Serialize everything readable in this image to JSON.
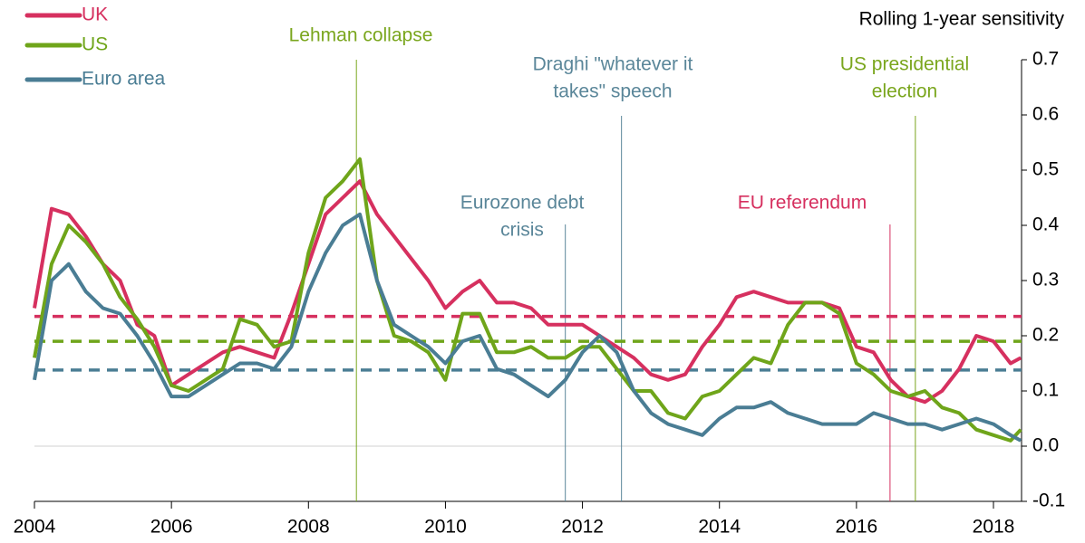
{
  "chart_data": {
    "type": "line",
    "y_axis_label": "Rolling 1-year sensitivity",
    "x": [
      2004,
      2004.25,
      2004.5,
      2004.75,
      2005,
      2005.25,
      2005.5,
      2005.75,
      2006,
      2006.25,
      2006.5,
      2006.75,
      2007,
      2007.25,
      2007.5,
      2007.75,
      2008,
      2008.25,
      2008.5,
      2008.75,
      2009,
      2009.25,
      2009.5,
      2009.75,
      2010,
      2010.25,
      2010.5,
      2010.75,
      2011,
      2011.25,
      2011.5,
      2011.75,
      2012,
      2012.25,
      2012.5,
      2012.75,
      2013,
      2013.25,
      2013.5,
      2013.75,
      2014,
      2014.25,
      2014.5,
      2014.75,
      2015,
      2015.25,
      2015.5,
      2015.75,
      2016,
      2016.25,
      2016.5,
      2016.75,
      2017,
      2017.25,
      2017.5,
      2017.75,
      2018,
      2018.25,
      2018.4
    ],
    "series": [
      {
        "name": "UK",
        "color": "#d6305f",
        "mean": 0.235,
        "values": [
          0.25,
          0.43,
          0.42,
          0.38,
          0.33,
          0.3,
          0.22,
          0.2,
          0.11,
          0.13,
          0.15,
          0.17,
          0.18,
          0.17,
          0.16,
          0.24,
          0.33,
          0.42,
          0.45,
          0.48,
          0.42,
          0.38,
          0.34,
          0.3,
          0.25,
          0.28,
          0.3,
          0.26,
          0.26,
          0.25,
          0.22,
          0.22,
          0.22,
          0.2,
          0.18,
          0.16,
          0.13,
          0.12,
          0.13,
          0.18,
          0.22,
          0.27,
          0.28,
          0.27,
          0.26,
          0.26,
          0.26,
          0.25,
          0.18,
          0.17,
          0.12,
          0.09,
          0.08,
          0.1,
          0.14,
          0.2,
          0.19,
          0.15,
          0.16
        ]
      },
      {
        "name": "US",
        "color": "#6fa51a",
        "mean": 0.19,
        "values": [
          0.16,
          0.33,
          0.4,
          0.37,
          0.33,
          0.27,
          0.23,
          0.18,
          0.11,
          0.1,
          0.12,
          0.14,
          0.23,
          0.22,
          0.18,
          0.19,
          0.35,
          0.45,
          0.48,
          0.52,
          0.3,
          0.2,
          0.19,
          0.17,
          0.12,
          0.24,
          0.24,
          0.17,
          0.17,
          0.18,
          0.16,
          0.16,
          0.18,
          0.18,
          0.14,
          0.1,
          0.1,
          0.06,
          0.05,
          0.09,
          0.1,
          0.13,
          0.16,
          0.15,
          0.22,
          0.26,
          0.26,
          0.24,
          0.15,
          0.13,
          0.1,
          0.09,
          0.1,
          0.07,
          0.06,
          0.03,
          0.02,
          0.01,
          0.03
        ]
      },
      {
        "name": "Euro area",
        "color": "#4a7d94",
        "mean": 0.138,
        "values": [
          0.12,
          0.3,
          0.33,
          0.28,
          0.25,
          0.24,
          0.2,
          0.15,
          0.09,
          0.09,
          0.11,
          0.13,
          0.15,
          0.15,
          0.14,
          0.18,
          0.28,
          0.35,
          0.4,
          0.42,
          0.3,
          0.22,
          0.2,
          0.18,
          0.15,
          0.19,
          0.2,
          0.14,
          0.13,
          0.11,
          0.09,
          0.12,
          0.17,
          0.2,
          0.17,
          0.1,
          0.06,
          0.04,
          0.03,
          0.02,
          0.05,
          0.07,
          0.07,
          0.08,
          0.06,
          0.05,
          0.04,
          0.04,
          0.04,
          0.06,
          0.05,
          0.04,
          0.04,
          0.03,
          0.04,
          0.05,
          0.04,
          0.02,
          0.01
        ]
      }
    ],
    "annotations": [
      {
        "x": 2008.7,
        "color": "#7aa61d",
        "lines": [
          "Lehman collapse"
        ]
      },
      {
        "x": 2011.75,
        "color": "#5a8699",
        "lines": [
          "Eurozone debt",
          "crisis"
        ]
      },
      {
        "x": 2012.57,
        "color": "#5a8699",
        "lines": [
          "Draghi \"whatever it",
          "takes\" speech"
        ]
      },
      {
        "x": 2016.49,
        "color": "#d6305f",
        "lines": [
          "EU referendum"
        ]
      },
      {
        "x": 2016.86,
        "color": "#7aa61d",
        "lines": [
          "US presidential",
          "election"
        ]
      }
    ],
    "xlim": [
      2004,
      2018.41
    ],
    "xticks": [
      2004,
      2006,
      2008,
      2010,
      2012,
      2014,
      2016,
      2018
    ],
    "ylim": [
      -0.1,
      0.7
    ],
    "yticks": [
      -0.1,
      {
        "value": 0,
        "label": "0.0"
      },
      0.1,
      0.2,
      0.3,
      0.4,
      0.5,
      0.6,
      0.7
    ]
  }
}
